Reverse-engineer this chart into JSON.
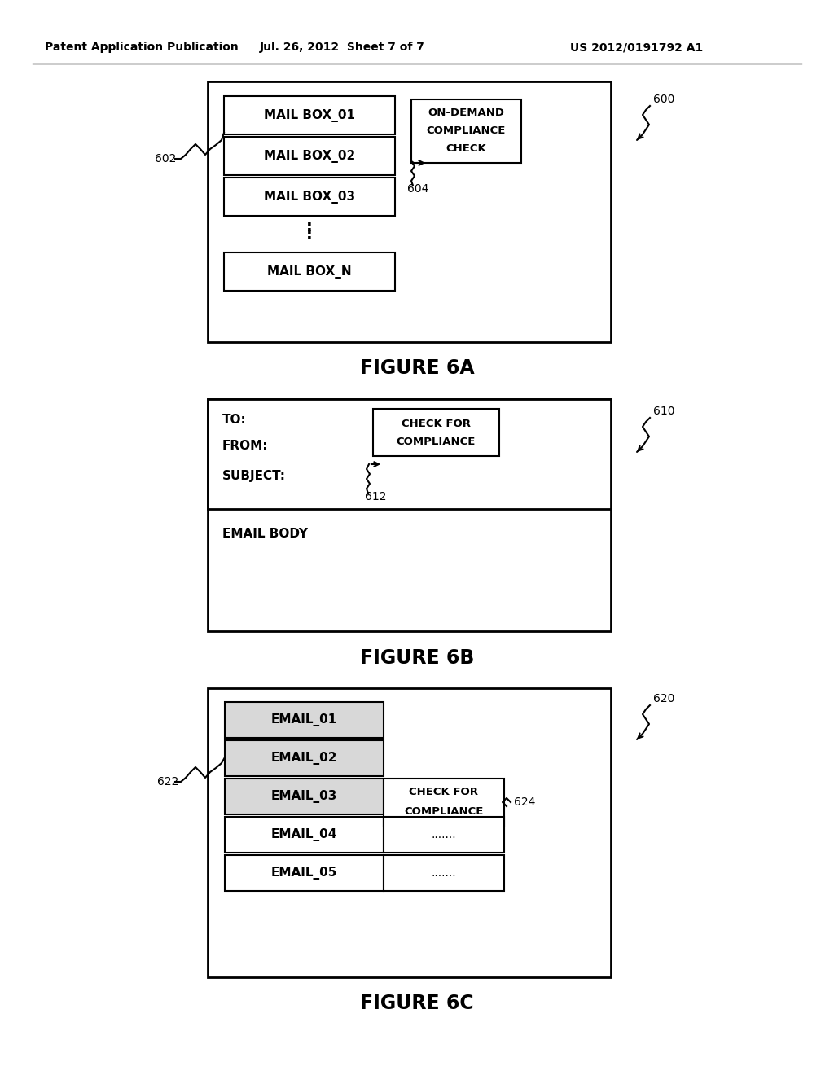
{
  "header_left": "Patent Application Publication",
  "header_mid": "Jul. 26, 2012  Sheet 7 of 7",
  "header_right": "US 2012/0191792 A1",
  "fig6a_title": "FIGURE 6A",
  "fig6b_title": "FIGURE 6B",
  "fig6c_title": "FIGURE 6C",
  "mailboxes": [
    "MAIL BOX_01",
    "MAIL BOX_02",
    "MAIL BOX_03",
    "MAIL BOX_N"
  ],
  "ondemand_lines": [
    "ON-DEMAND",
    "COMPLIANCE",
    "CHECK"
  ],
  "email_fields": [
    "TO:",
    "FROM:",
    "SUBJECT:"
  ],
  "email_body": "EMAIL BODY",
  "check_for_compliance": [
    "CHECK FOR",
    "COMPLIANCE"
  ],
  "emails": [
    "EMAIL_01",
    "EMAIL_02",
    "EMAIL_03",
    "EMAIL_04",
    "EMAIL_05"
  ],
  "email_colors": [
    "#d8d8d8",
    "#d8d8d8",
    "#d8d8d8",
    "#ffffff",
    "#ffffff"
  ],
  "bg_color": "#ffffff",
  "lw_outer": 2.0,
  "lw_inner": 1.5
}
